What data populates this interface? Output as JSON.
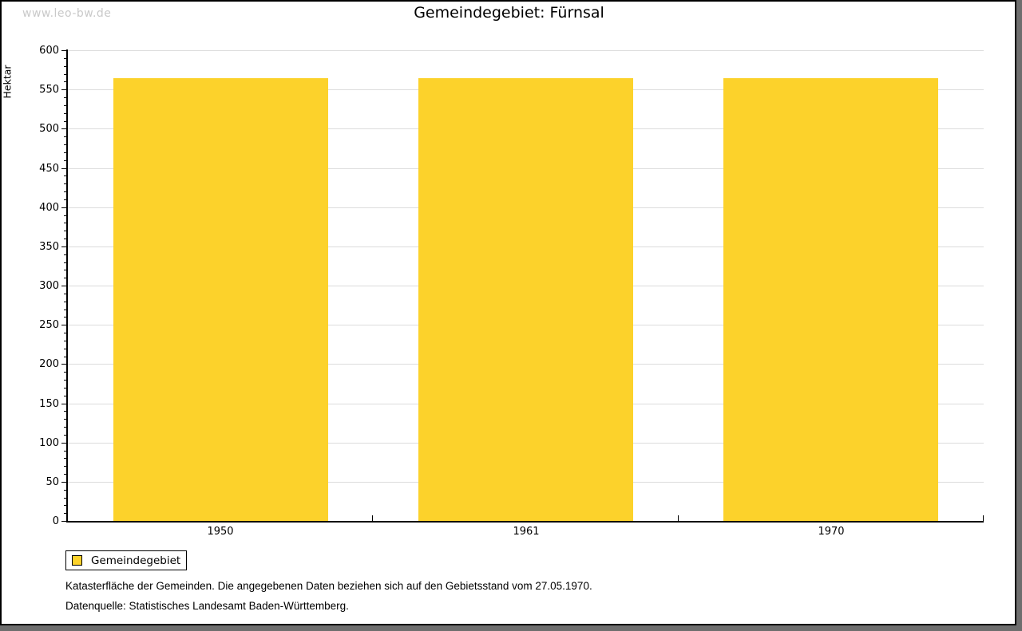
{
  "watermark": "www.leo-bw.de",
  "header": {
    "title": "Gemeindegebiet: Fürnsal"
  },
  "chart_data": {
    "type": "bar",
    "title": "Gemeindegebiet: Fürnsal",
    "categories": [
      "1950",
      "1961",
      "1970"
    ],
    "series": [
      {
        "name": "Gemeindegebiet",
        "values": [
          564,
          564,
          564
        ],
        "color": "#FCD22B"
      }
    ],
    "xlabel": "",
    "ylabel": "Hektar",
    "ylim": [
      0,
      600
    ],
    "y_major_step": 50,
    "y_minor_step": 10,
    "grid": true,
    "legend_position": "bottom-left"
  },
  "legend": {
    "items": [
      {
        "label": "Gemeindegebiet",
        "color": "#FCD22B"
      }
    ]
  },
  "captions": {
    "line1": "Katasterfläche der Gemeinden. Die angegebenen Daten beziehen sich auf den Gebietsstand vom 27.05.1970.",
    "line2": "Datenquelle: Statistisches Landesamt Baden-Württemberg."
  },
  "colors": {
    "bar": "#FCD22B",
    "grid": "#DCDCDC",
    "axis": "#000000",
    "watermark": "#C9C9C9",
    "frame_shadow": "#6E6E6E"
  }
}
